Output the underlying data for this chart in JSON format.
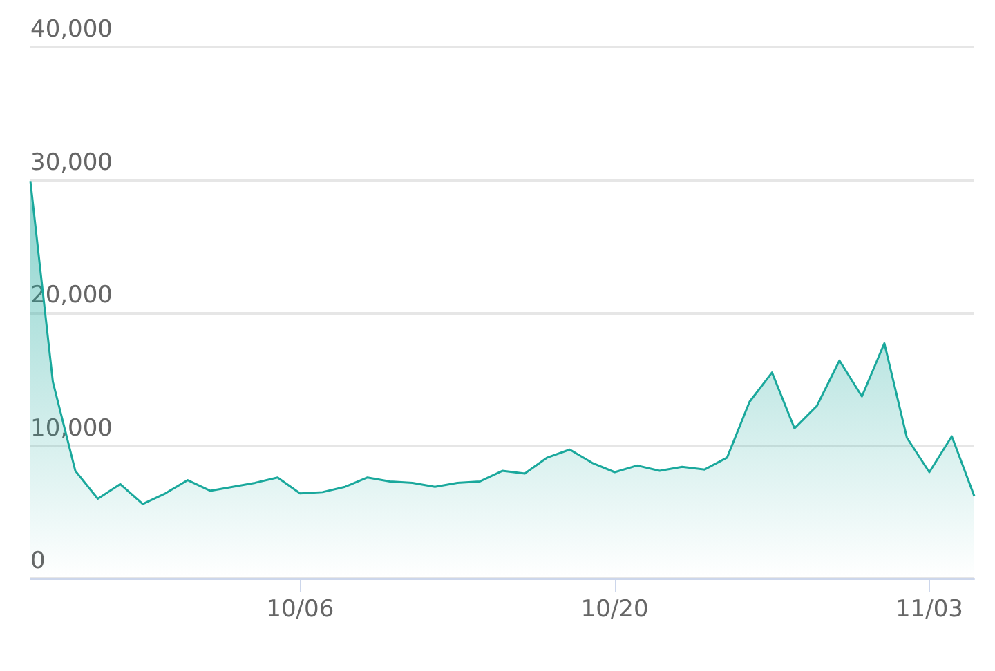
{
  "chart_data": {
    "type": "area",
    "x": [
      "--09-24",
      "--09-25",
      "--09-26",
      "--09-27",
      "--09-28",
      "--09-29",
      "--09-30",
      "--10-01",
      "--10-02",
      "--10-03",
      "--10-04",
      "--10-05",
      "--10-06",
      "--10-07",
      "--10-08",
      "--10-09",
      "--10-10",
      "--10-11",
      "--10-12",
      "--10-13",
      "--10-14",
      "--10-15",
      "--10-16",
      "--10-17",
      "--10-18",
      "--10-19",
      "--10-20",
      "--10-21",
      "--10-22",
      "--10-23",
      "--10-24",
      "--10-25",
      "--10-26",
      "--10-27",
      "--10-28",
      "--10-29",
      "--10-30",
      "--10-31",
      "--11-01",
      "--11-02",
      "--11-03",
      "--11-04",
      "--11-05"
    ],
    "series": [
      {
        "color": "#1aa89c",
        "values": [
          29900,
          14800,
          8100,
          6000,
          7100,
          5600,
          6400,
          7400,
          6600,
          6900,
          7200,
          7600,
          6400,
          6500,
          6900,
          7600,
          7300,
          7200,
          6900,
          7200,
          7300,
          8100,
          7900,
          9100,
          9700,
          8700,
          8000,
          8500,
          8100,
          8400,
          8200,
          9100,
          13300,
          15500,
          11300,
          13000,
          16400,
          13700,
          17700,
          10600,
          8000,
          10700,
          6200
        ]
      }
    ],
    "xlim": [
      "--09-24",
      "--11-05"
    ],
    "xticks": [
      {
        "value": "--10-06",
        "label": "10/06"
      },
      {
        "value": "--10-20",
        "label": "10/20"
      },
      {
        "value": "--11-03",
        "label": "11/03"
      }
    ],
    "ylim": [
      0,
      40000
    ],
    "yticks": [
      {
        "value": 0,
        "label": "0"
      },
      {
        "value": 10000,
        "label": "10,000"
      },
      {
        "value": 20000,
        "label": "20,000"
      },
      {
        "value": 30000,
        "label": "30,000"
      },
      {
        "value": 40000,
        "label": "40,000"
      }
    ],
    "grid": "y"
  }
}
